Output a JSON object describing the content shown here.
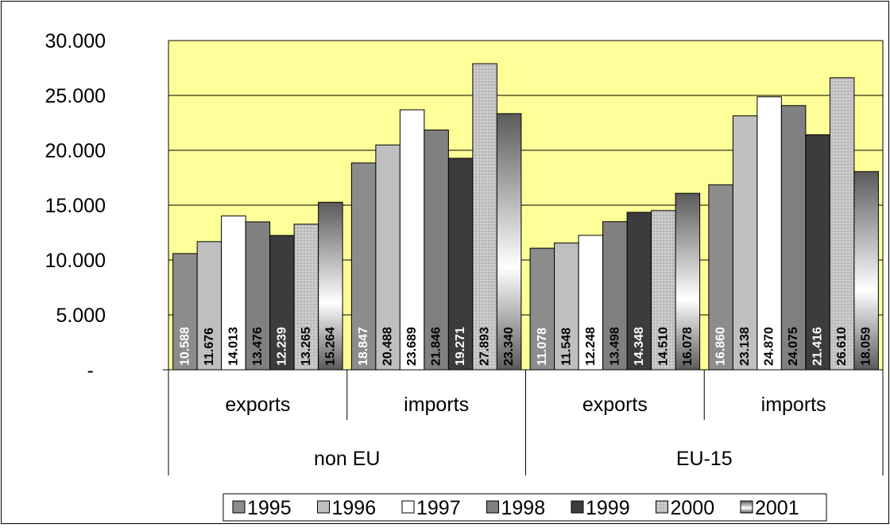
{
  "chart_data": {
    "type": "bar",
    "title": "",
    "xlabel": "",
    "ylabel": "",
    "ylim": [
      0,
      30000
    ],
    "yticks": [
      {
        "value": 0,
        "label": "-"
      },
      {
        "value": 5000,
        "label": "5.000"
      },
      {
        "value": 10000,
        "label": "10.000"
      },
      {
        "value": 15000,
        "label": "15.000"
      },
      {
        "value": 20000,
        "label": "20.000"
      },
      {
        "value": 25000,
        "label": "25.000"
      },
      {
        "value": 30000,
        "label": "30.000"
      }
    ],
    "grid": true,
    "legend_position": "bottom",
    "groups": [
      {
        "label": "non EU",
        "subcategories": [
          "exports",
          "imports"
        ]
      },
      {
        "label": "EU-15",
        "subcategories": [
          "exports",
          "imports"
        ]
      }
    ],
    "categories": [
      "non EU exports",
      "non EU imports",
      "EU-15 exports",
      "EU-15 imports"
    ],
    "series": [
      {
        "name": "1995",
        "values": [
          10588,
          18847,
          11078,
          16860
        ],
        "labels": [
          "10.588",
          "18.847",
          "11.078",
          "16.860"
        ],
        "color": "#8c8c8c",
        "label_color": "#ffffff"
      },
      {
        "name": "1996",
        "values": [
          11676,
          20488,
          11548,
          23138
        ],
        "labels": [
          "11.676",
          "20.488",
          "11.548",
          "23.138"
        ],
        "color": "#bfbfbf",
        "label_color": "#000000"
      },
      {
        "name": "1997",
        "values": [
          14013,
          23689,
          12248,
          24870
        ],
        "labels": [
          "14.013",
          "23.689",
          "12.248",
          "24.870"
        ],
        "color": "#ffffff",
        "label_color": "#000000"
      },
      {
        "name": "1998",
        "values": [
          13476,
          21846,
          13498,
          24075
        ],
        "labels": [
          "13.476",
          "21.846",
          "13.498",
          "24.075"
        ],
        "color": "#808080",
        "label_color": "#000000"
      },
      {
        "name": "1999",
        "values": [
          12239,
          19271,
          14348,
          21416
        ],
        "labels": [
          "12.239",
          "19.271",
          "14.348",
          "21.416"
        ],
        "color": "#3c3c3c",
        "label_color": "#ffffff"
      },
      {
        "name": "2000",
        "values": [
          13265,
          27893,
          14510,
          26610
        ],
        "labels": [
          "13.265",
          "27.893",
          "14.510",
          "26.610"
        ],
        "color": "#c4c4c4",
        "label_color": "#000000",
        "pattern": "dots"
      },
      {
        "name": "2001",
        "values": [
          15264,
          23340,
          16078,
          18059
        ],
        "labels": [
          "15.264",
          "23.340",
          "16.078",
          "18.059"
        ],
        "color": "#6e6e6e",
        "label_color": "#000000",
        "gradient": true
      }
    ],
    "plot_background": "#ffff99"
  }
}
